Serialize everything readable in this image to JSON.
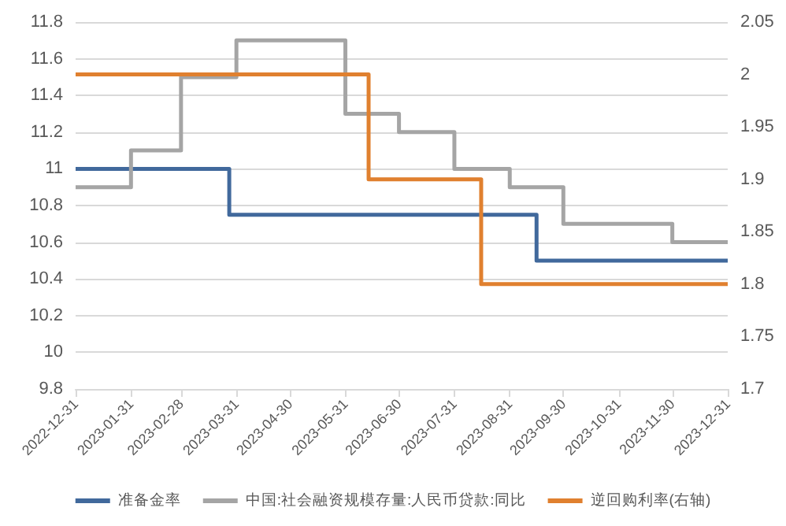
{
  "chart_data": {
    "type": "step",
    "xlim": [
      "2022-12-31",
      "2023-12-31"
    ],
    "xticks": [
      "2022-12-31",
      "2023-01-31",
      "2023-02-28",
      "2023-03-31",
      "2023-04-30",
      "2023-05-31",
      "2023-06-30",
      "2023-07-31",
      "2023-08-31",
      "2023-09-30",
      "2023-10-31",
      "2023-11-30",
      "2023-12-31"
    ],
    "ylim": [
      9.8,
      11.8
    ],
    "yticks": [
      9.8,
      10,
      10.2,
      10.4,
      10.6,
      10.8,
      11,
      11.2,
      11.4,
      11.6,
      11.8
    ],
    "y2lim": [
      1.7,
      2.05
    ],
    "y2ticks": [
      1.7,
      1.75,
      1.8,
      1.85,
      1.9,
      1.95,
      2,
      2.05
    ],
    "series": [
      {
        "name": "准备金率",
        "color": "#41699c",
        "x": [
          "2022-12-31",
          "2023-03-27",
          "2023-09-15",
          "2023-12-31"
        ],
        "values": [
          11,
          10.75,
          10.5,
          10.5
        ]
      },
      {
        "name": "中国:社会融资规模存量:人民币贷款:同比",
        "color": "#a5a5a5",
        "x": [
          "2022-12-31",
          "2023-01-31",
          "2023-02-28",
          "2023-03-31",
          "2023-04-30",
          "2023-05-31",
          "2023-06-30",
          "2023-07-31",
          "2023-08-31",
          "2023-09-30",
          "2023-10-31",
          "2023-11-30",
          "2023-12-31"
        ],
        "values": [
          10.9,
          11.1,
          11.5,
          11.7,
          11.7,
          11.3,
          11.2,
          11.0,
          10.9,
          10.7,
          10.7,
          10.6,
          10.6
        ]
      },
      {
        "name": "逆回购利率(右轴)",
        "color": "#e0802f",
        "axis": "y2",
        "x": [
          "2022-12-31",
          "2023-06-13",
          "2023-08-15",
          "2023-12-31"
        ],
        "values": [
          2,
          1.9,
          1.8,
          1.8
        ]
      }
    ],
    "grid": "y",
    "legend": "bottom",
    "marker": "none"
  }
}
